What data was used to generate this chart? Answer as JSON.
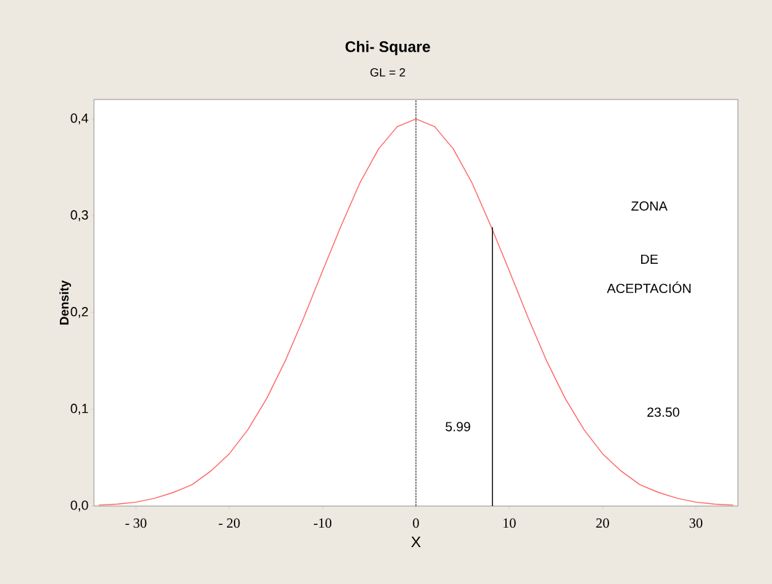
{
  "chart_data": {
    "type": "line",
    "title": "Chi- Square",
    "subtitle": "GL = 2",
    "xlabel": "X",
    "ylabel": "Density",
    "xlim": [
      -34.5,
      34.5
    ],
    "ylim": [
      0,
      0.42
    ],
    "xticks": [
      {
        "value": -30,
        "label": "- 30"
      },
      {
        "value": -20,
        "label": "- 20"
      },
      {
        "value": -10,
        "label": "-10"
      },
      0,
      10,
      20,
      30
    ],
    "yticks": [
      {
        "value": 0,
        "label": "0,0"
      },
      {
        "value": 0.1,
        "label": "0,1"
      },
      {
        "value": 0.2,
        "label": "0,2"
      },
      {
        "value": 0.3,
        "label": "0,3"
      },
      {
        "value": 0.4,
        "label": "0,4"
      }
    ],
    "ref_lines": [
      {
        "axis": "x",
        "value": 0,
        "color": "#555555",
        "line_style": "dotted"
      }
    ],
    "annotations": [
      "ZONA",
      "DE",
      "ACEPTACIÓN",
      "5.99",
      "23.50"
    ],
    "series": [
      {
        "color": "#ff6666",
        "line_style": "solid",
        "x": [
          -34,
          -32,
          -30,
          -28,
          -26,
          -24,
          -22,
          -20,
          -18,
          -16,
          -14,
          -12,
          -10,
          -8,
          -6,
          -4,
          -2,
          0,
          2,
          4,
          6,
          8,
          10,
          12,
          14,
          16,
          18,
          20,
          22,
          24,
          26,
          28,
          30,
          32,
          34
        ],
        "values": [
          0.001,
          0.002,
          0.004,
          0.008,
          0.014,
          0.022,
          0.036,
          0.054,
          0.079,
          0.111,
          0.15,
          0.195,
          0.243,
          0.29,
          0.334,
          0.369,
          0.392,
          0.4,
          0.392,
          0.369,
          0.334,
          0.29,
          0.243,
          0.195,
          0.15,
          0.111,
          0.079,
          0.054,
          0.036,
          0.022,
          0.014,
          0.008,
          0.004,
          0.002,
          0.001
        ]
      },
      {
        "color": "#000000",
        "line_style": "solid",
        "x": [
          8.2,
          8.2
        ],
        "values": [
          0,
          0.288
        ]
      }
    ]
  }
}
